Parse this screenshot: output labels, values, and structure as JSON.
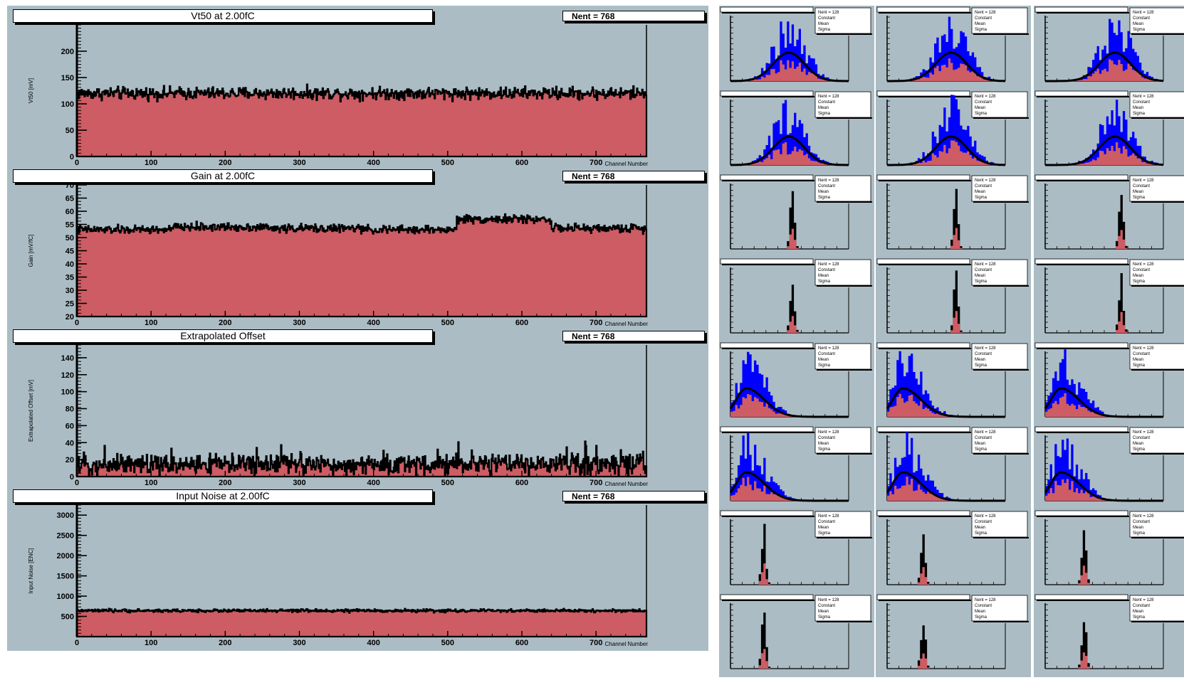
{
  "chart_data": [
    {
      "type": "bar",
      "title": "Vt50 at 2.00fC",
      "stat_label": "Nent = 768",
      "xlabel": "Channel Number",
      "ylabel": "Vt50 [mV]",
      "xlim": [
        0,
        768
      ],
      "ylim": [
        0,
        250
      ],
      "xticks": [
        0,
        100,
        200,
        300,
        400,
        500,
        600,
        700
      ],
      "yticks": [
        0,
        50,
        100,
        150,
        200
      ],
      "bin_width": 1,
      "segments": [
        {
          "from": 0,
          "to": 768,
          "level": 120,
          "spread": 9
        }
      ]
    },
    {
      "type": "bar",
      "title": "Gain at 2.00fC",
      "stat_label": "Nent = 768",
      "xlabel": "Channel Number",
      "ylabel": "Gain [mV/fC]",
      "xlim": [
        0,
        768
      ],
      "ylim": [
        20,
        70
      ],
      "xticks": [
        0,
        100,
        200,
        300,
        400,
        500,
        600,
        700
      ],
      "yticks": [
        20,
        25,
        30,
        35,
        40,
        45,
        50,
        55,
        60,
        65,
        70
      ],
      "bin_width": 1,
      "segments": [
        {
          "from": 0,
          "to": 128,
          "level": 53,
          "spread": 1.2
        },
        {
          "from": 128,
          "to": 256,
          "level": 54,
          "spread": 1.2
        },
        {
          "from": 256,
          "to": 384,
          "level": 53.5,
          "spread": 1.2
        },
        {
          "from": 384,
          "to": 512,
          "level": 53,
          "spread": 1.2
        },
        {
          "from": 512,
          "to": 640,
          "level": 57,
          "spread": 1.2
        },
        {
          "from": 640,
          "to": 768,
          "level": 53.5,
          "spread": 1.2
        }
      ]
    },
    {
      "type": "bar",
      "title": "Extrapolated Offset",
      "stat_label": "Nent = 768",
      "xlabel": "Channel Number",
      "ylabel": "Extrapolated Offset [mV]",
      "xlim": [
        0,
        768
      ],
      "ylim": [
        0,
        155
      ],
      "xticks": [
        0,
        100,
        200,
        300,
        400,
        500,
        600,
        700
      ],
      "yticks": [
        0,
        20,
        40,
        60,
        80,
        100,
        120,
        140
      ],
      "bin_width": 1,
      "segments": [
        {
          "from": 0,
          "to": 768,
          "level": 14,
          "spread": 9
        }
      ]
    },
    {
      "type": "bar",
      "title": "Input Noise at 2.00fC",
      "stat_label": "Nent = 768",
      "xlabel": "Channel Number",
      "ylabel": "Input Noise [ENC]",
      "xlim": [
        0,
        768
      ],
      "ylim": [
        0,
        3250
      ],
      "xticks": [
        0,
        100,
        200,
        300,
        400,
        500,
        600,
        700
      ],
      "yticks": [
        500,
        1000,
        1500,
        2000,
        2500,
        3000
      ],
      "bin_width": 1,
      "segments": [
        {
          "from": 0,
          "to": 768,
          "level": 640,
          "spread": 30
        }
      ]
    }
  ],
  "mini_histograms": {
    "rows_per_group": 2,
    "columns": 3,
    "stat_lines": [
      "Nent = 128",
      "Constant",
      "Mean",
      "Sigma"
    ],
    "groups": [
      {
        "kind": "vt50",
        "shape": "gauss-wide",
        "fit": true
      },
      {
        "kind": "gain",
        "shape": "narrow",
        "fit": false
      },
      {
        "kind": "offset",
        "shape": "skewed",
        "fit": true
      },
      {
        "kind": "noise",
        "shape": "narrow",
        "fit": false
      }
    ]
  },
  "colors": {
    "pad_background": "#abbcc4",
    "fill": "#cd5c64",
    "line": "#000000",
    "hist_blue": "#0000ff",
    "frame": "#ffffff"
  }
}
